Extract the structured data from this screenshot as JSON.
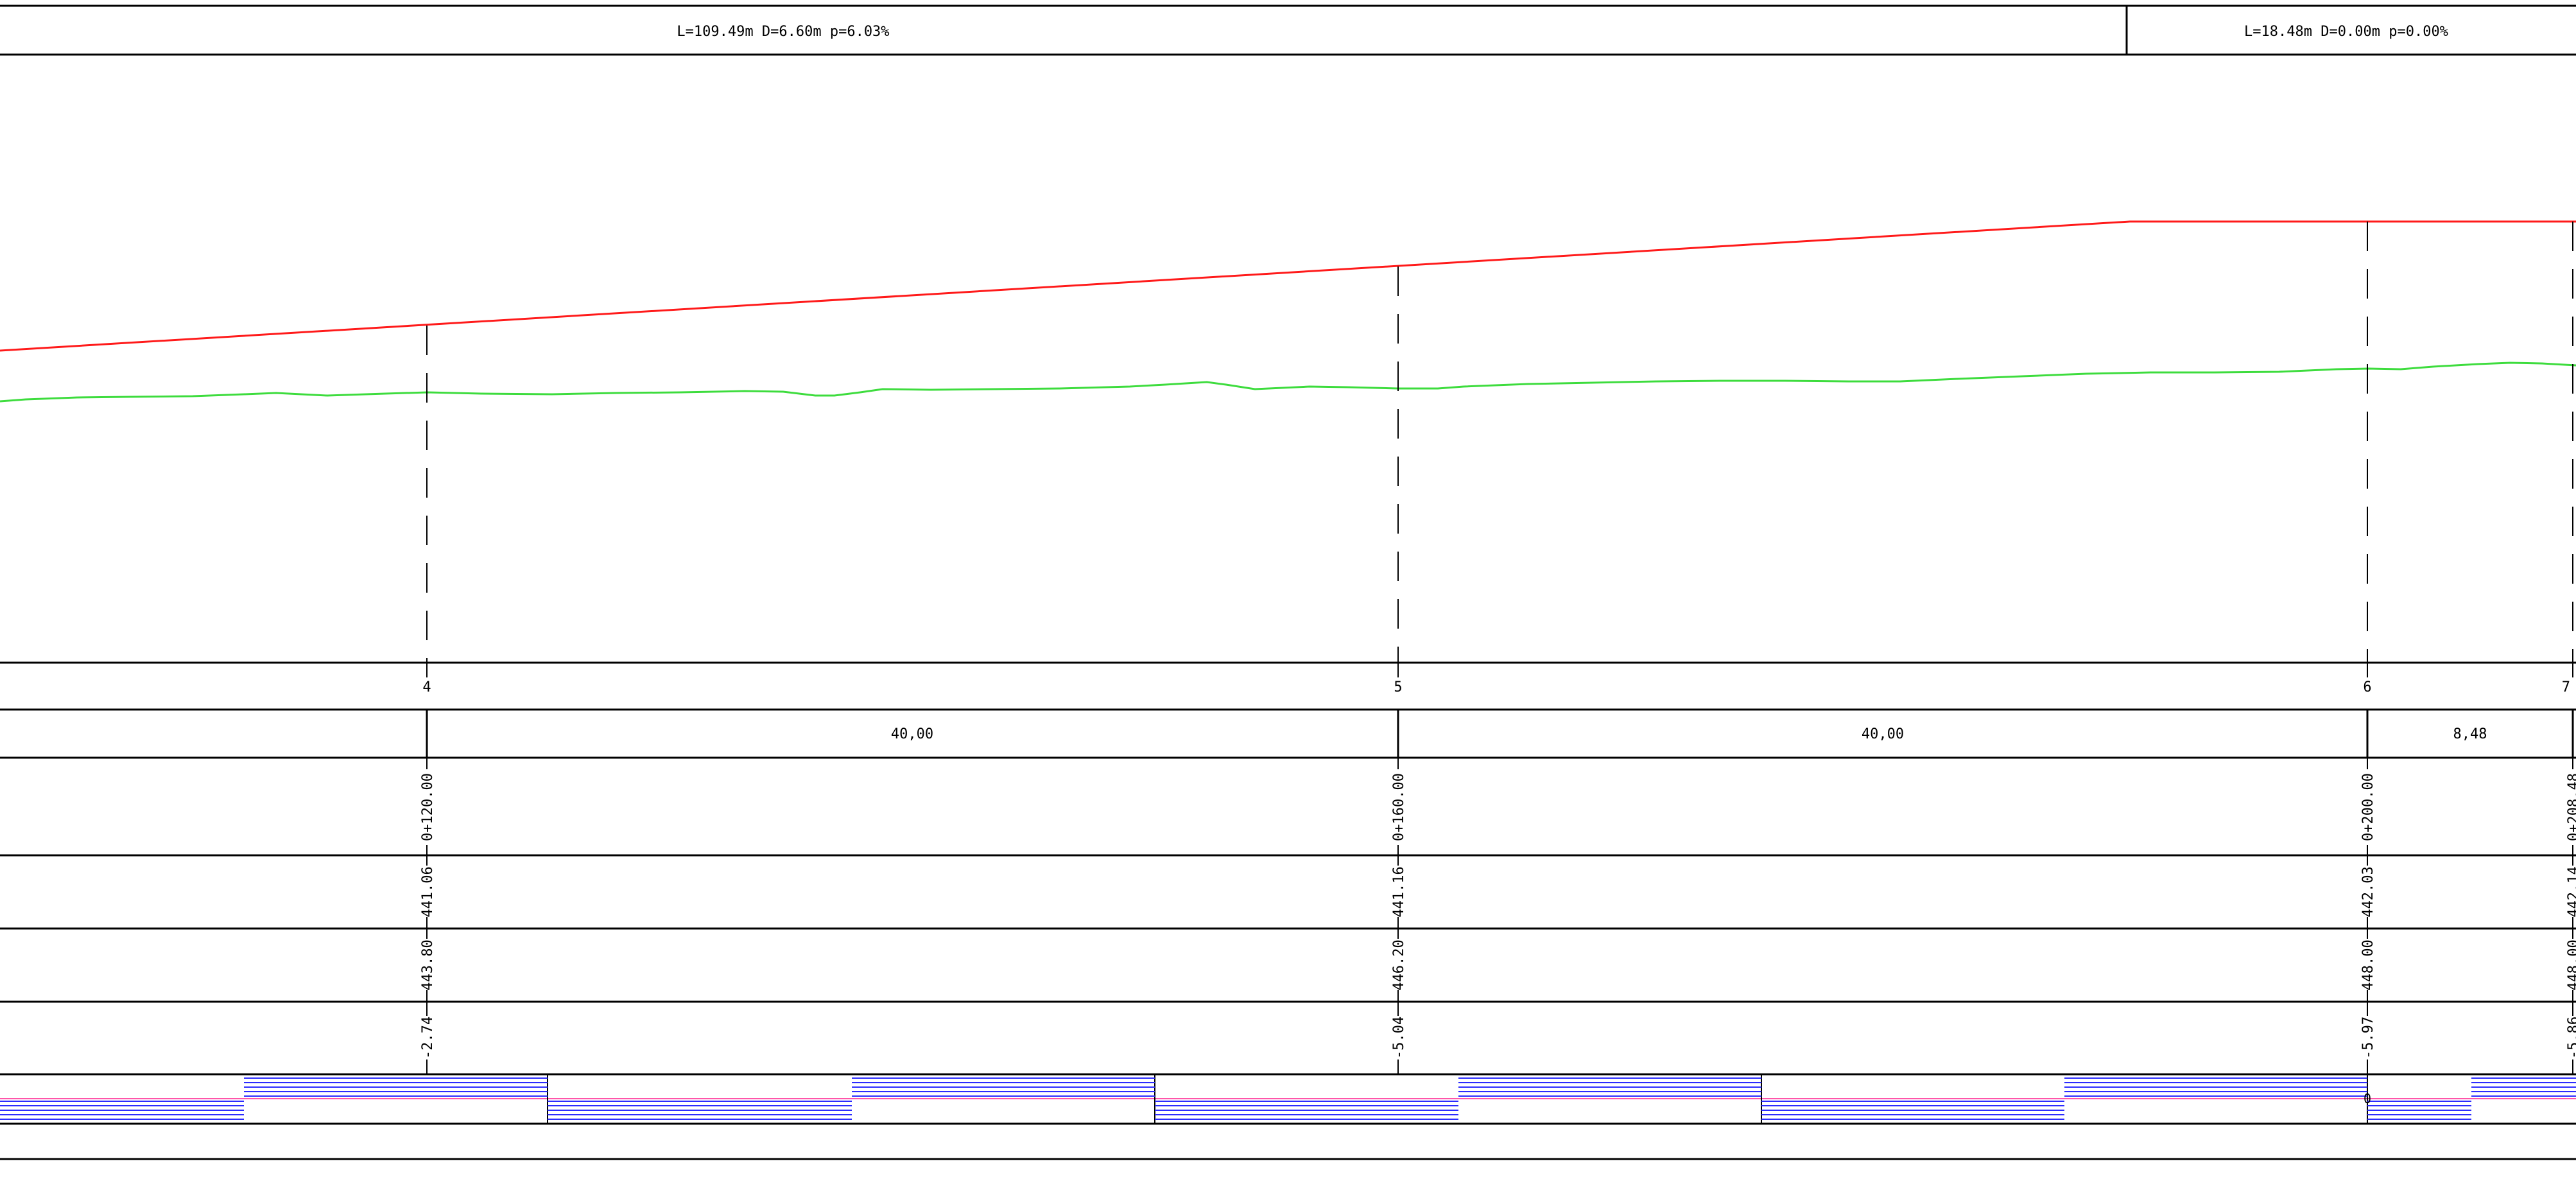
{
  "colors": {
    "line": "#000000",
    "design_grade": "#ff1a1a",
    "terrain": "#3ddc3d",
    "curvature_hatch": "#2b2bff",
    "curvature_axis": "#ff55aa"
  },
  "grade_segments": [
    {
      "label": "L=109.49m  D=6.60m  p=6.03%"
    },
    {
      "label": "L=18.48m  D=0.00m  p=0.00%"
    }
  ],
  "stations": [
    {
      "number": "4",
      "chainage": "0+120.00",
      "terrain_elev": "441.06",
      "design_elev": "443.80",
      "cut_fill": "-2.74"
    },
    {
      "number": "5",
      "chainage": "0+160.00",
      "terrain_elev": "441.16",
      "design_elev": "446.20",
      "cut_fill": "-5.04"
    },
    {
      "number": "6",
      "chainage": "0+200.00",
      "terrain_elev": "442.03",
      "design_elev": "448.00",
      "cut_fill": "-5.97"
    },
    {
      "number": "7",
      "chainage": "0+208.48",
      "terrain_elev": "442.14",
      "design_elev": "448.00",
      "cut_fill": "-5.86"
    }
  ],
  "distances": [
    "40,00",
    "40,00",
    "8,48"
  ],
  "curvature_marker": "0"
}
